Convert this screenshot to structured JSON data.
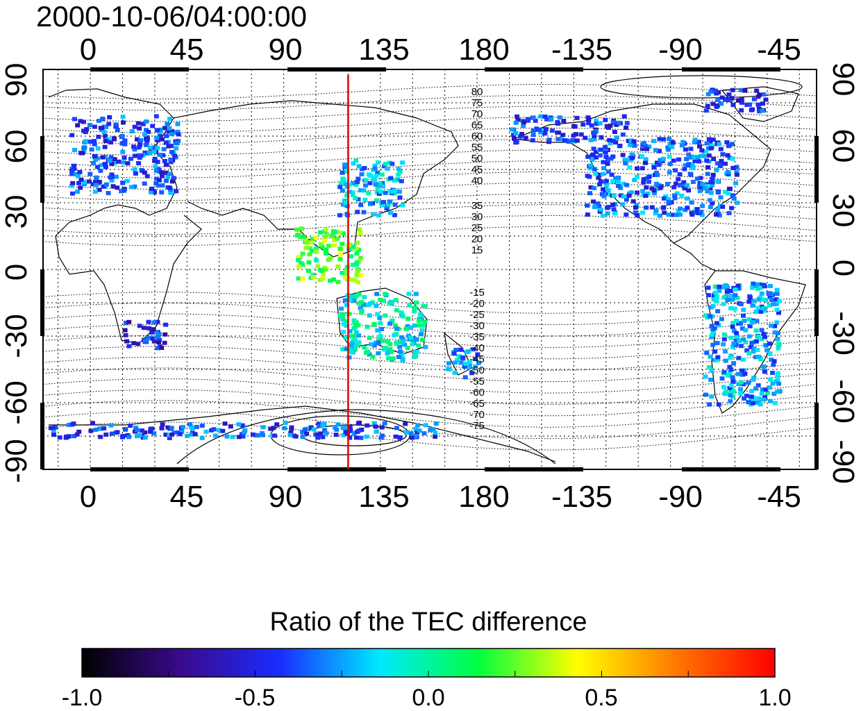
{
  "title": "2000-10-06/04:00:00",
  "map": {
    "lon_ticks_top": [
      "0",
      "45",
      "90",
      "135",
      "180",
      "-135",
      "-90",
      "-45"
    ],
    "lon_ticks_bottom": [
      "0",
      "45",
      "90",
      "135",
      "180",
      "-135",
      "-90",
      "-45"
    ],
    "lat_ticks_left": [
      "90",
      "60",
      "30",
      "0",
      "-30",
      "-60",
      "-90"
    ],
    "lat_ticks_right": [
      "90",
      "60",
      "30",
      "0",
      "-30",
      "-60",
      "-90"
    ],
    "contour_labels_north": [
      "80",
      "75",
      "70",
      "65",
      "60",
      "55",
      "50",
      "45",
      "40",
      "35",
      "30",
      "25",
      "20",
      "15"
    ],
    "contour_labels_south": [
      "-15",
      "-20",
      "-25",
      "-30",
      "-35",
      "-40",
      "-45",
      "-50",
      "-55",
      "-60",
      "-65",
      "-70",
      "-75"
    ],
    "meridian_marker_lon": 120,
    "marker_color": "#e00000"
  },
  "colorbar": {
    "label": "Ratio of the TEC difference",
    "ticks": [
      "-1.0",
      "-0.5",
      "0.0",
      "0.5",
      "1.0"
    ],
    "range": [
      -1.0,
      1.0
    ],
    "colormap": [
      "#000000",
      "#3a0a8c",
      "#1a2cff",
      "#00e8ff",
      "#00ff40",
      "#ffff00",
      "#ff7800",
      "#ff0000"
    ]
  },
  "data_regions": [
    {
      "name": "europe",
      "lon": [
        -10,
        40
      ],
      "lat": [
        35,
        70
      ],
      "value": -0.4
    },
    {
      "name": "east-asia",
      "lon": [
        115,
        145
      ],
      "lat": [
        25,
        50
      ],
      "value": -0.2
    },
    {
      "name": "north-america",
      "lon": [
        -130,
        -60
      ],
      "lat": [
        25,
        60
      ],
      "value": -0.35
    },
    {
      "name": "south-america",
      "lon": [
        -75,
        -40
      ],
      "lat": [
        -60,
        -5
      ],
      "value": -0.25
    },
    {
      "name": "south-africa",
      "lon": [
        15,
        35
      ],
      "lat": [
        -35,
        -22
      ],
      "value": -0.5
    },
    {
      "name": "australia",
      "lon": [
        115,
        155
      ],
      "lat": [
        -40,
        -10
      ],
      "value": -0.1
    },
    {
      "name": "new-zealand",
      "lon": [
        165,
        180
      ],
      "lat": [
        -48,
        -35
      ],
      "value": -0.25
    },
    {
      "name": "antarctica-coast",
      "lon": [
        -20,
        160
      ],
      "lat": [
        -75,
        -68
      ],
      "value": -0.4
    },
    {
      "name": "alaska-canada",
      "lon": [
        -165,
        -110
      ],
      "lat": [
        58,
        70
      ],
      "value": -0.4
    },
    {
      "name": "southeast-asia",
      "lon": [
        95,
        125
      ],
      "lat": [
        -5,
        20
      ],
      "value": 0.2
    },
    {
      "name": "greenland-arctic",
      "lon": [
        -75,
        -45
      ],
      "lat": [
        72,
        82
      ],
      "value": -0.5
    }
  ]
}
